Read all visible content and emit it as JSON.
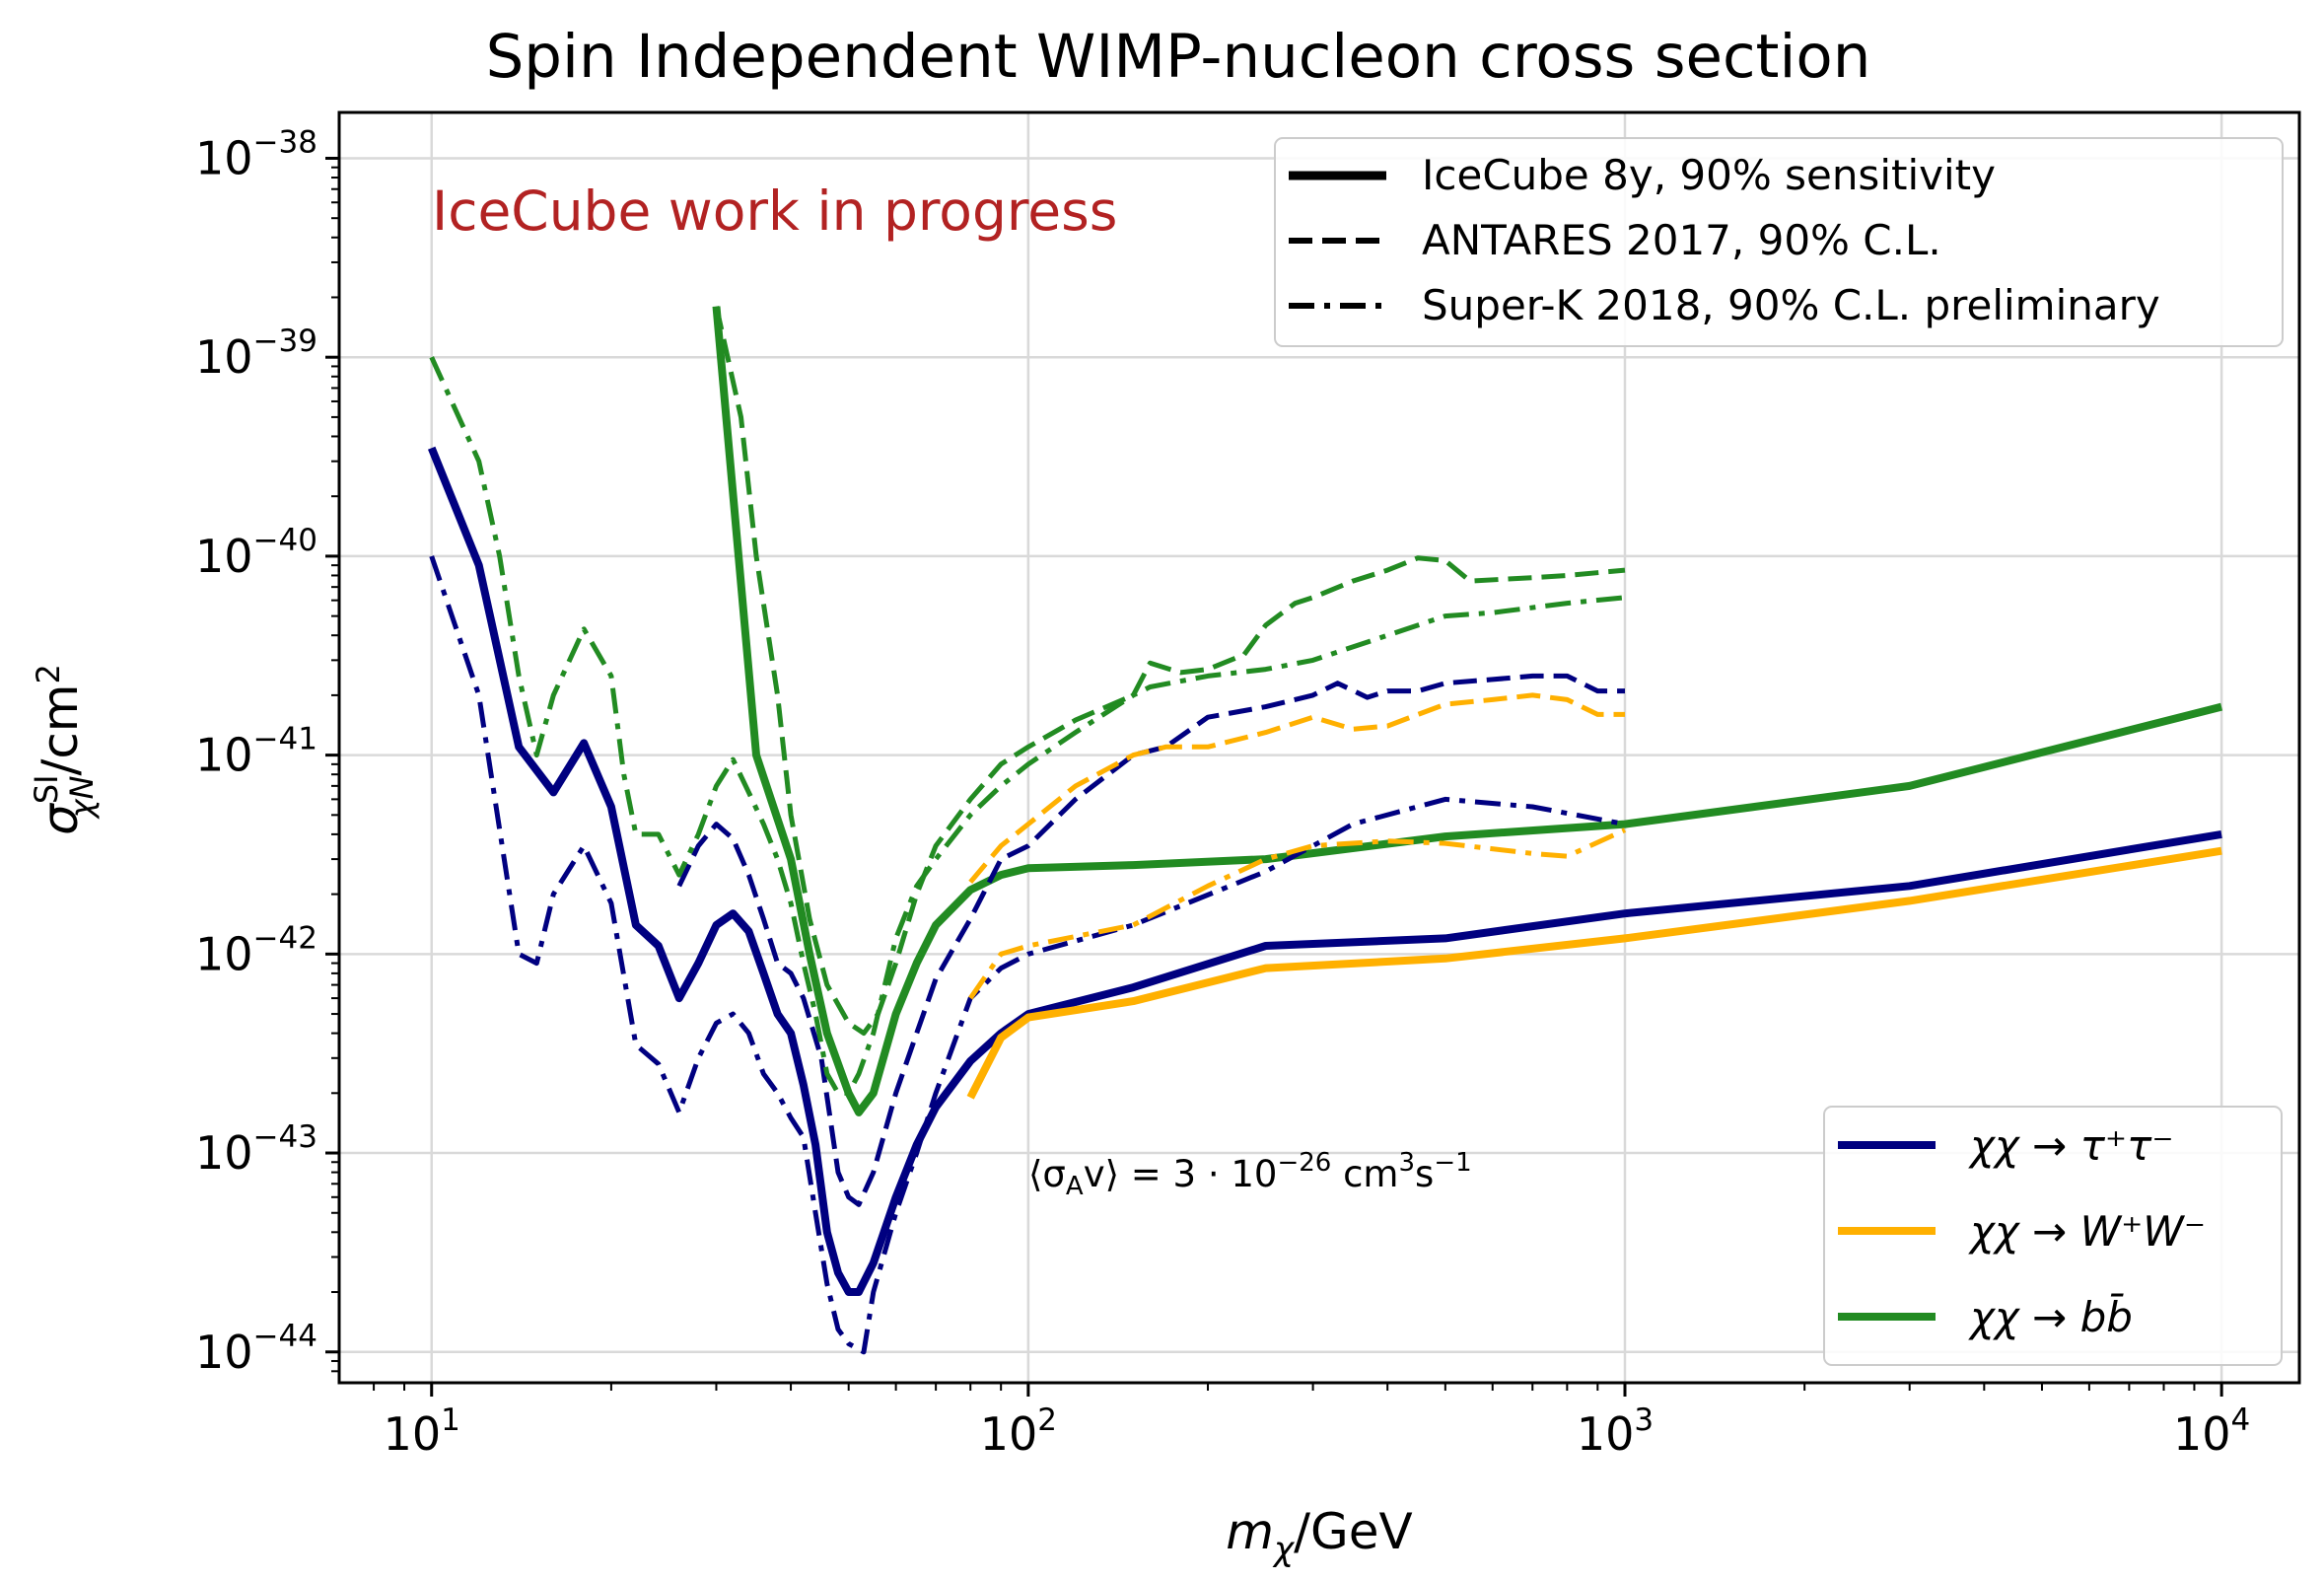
{
  "chart_data": {
    "type": "line",
    "title": "Spin Independent WIMP-nucleon cross section",
    "xlabel": {
      "base": "m",
      "sub": "χ",
      "unit": "/GeV"
    },
    "ylabel": {
      "base": "σ",
      "sup": "SI",
      "sub": "χN",
      "unit": "/cm",
      "unit_sup": "2"
    },
    "x_scale": "log",
    "y_scale": "log",
    "xlim": [
      7,
      13500
    ],
    "ylim": [
      7e-45,
      1.7e-38
    ],
    "grid": true,
    "x_ticks": [
      {
        "value": 10,
        "base": "10",
        "exp": "1"
      },
      {
        "value": 100,
        "base": "10",
        "exp": "2"
      },
      {
        "value": 1000,
        "base": "10",
        "exp": "3"
      },
      {
        "value": 10000,
        "base": "10",
        "exp": "4"
      }
    ],
    "y_ticks": [
      {
        "value": 1e-44,
        "base": "10",
        "exp": "−44"
      },
      {
        "value": 1e-43,
        "base": "10",
        "exp": "−43"
      },
      {
        "value": 1e-42,
        "base": "10",
        "exp": "−42"
      },
      {
        "value": 1e-41,
        "base": "10",
        "exp": "−41"
      },
      {
        "value": 1e-40,
        "base": "10",
        "exp": "−40"
      },
      {
        "value": 1e-39,
        "base": "10",
        "exp": "−39"
      },
      {
        "value": 1e-38,
        "base": "10",
        "exp": "−38"
      }
    ],
    "annotations": {
      "watermark": "IceCube work in progress",
      "cross_section": {
        "lhs": "⟨σ",
        "lhs_sub": "A",
        "lhs_rest": "v⟩ = 3 · 10",
        "exp": "−26",
        "unit": " cm",
        "unit_sup": "3",
        "unit2": "s",
        "unit2_sup": "−1"
      }
    },
    "style_legend": [
      {
        "label": "IceCube 8y, 90% sensitivity",
        "dash": "solid"
      },
      {
        "label": "ANTARES 2017, 90% C.L.",
        "dash": "dashed"
      },
      {
        "label": "Super-K 2018, 90% C.L. preliminary",
        "dash": "dashdot"
      }
    ],
    "color_legend": [
      {
        "label": "χχ → τ⁺τ⁻",
        "color": "#000080"
      },
      {
        "label": "χχ → W⁺W⁻",
        "color": "#ffb000"
      },
      {
        "label": "χχ → bb̄",
        "color": "#228b22"
      }
    ],
    "series": [
      {
        "channel": "tau",
        "experiment": "IceCube",
        "dash": "solid",
        "color": "#000080",
        "points": [
          [
            10,
            3.5e-40
          ],
          [
            12,
            9e-41
          ],
          [
            14,
            1.1e-41
          ],
          [
            16,
            6.5e-42
          ],
          [
            18,
            1.15e-41
          ],
          [
            20,
            5.5e-42
          ],
          [
            22,
            1.4e-42
          ],
          [
            24,
            1.1e-42
          ],
          [
            26,
            6e-43
          ],
          [
            28,
            9e-43
          ],
          [
            30,
            1.4e-42
          ],
          [
            32,
            1.6e-42
          ],
          [
            34,
            1.3e-42
          ],
          [
            36,
            8e-43
          ],
          [
            38,
            5e-43
          ],
          [
            40,
            4e-43
          ],
          [
            42,
            2.2e-43
          ],
          [
            44,
            1.1e-43
          ],
          [
            46,
            4e-44
          ],
          [
            48,
            2.5e-44
          ],
          [
            50,
            2e-44
          ],
          [
            52,
            2e-44
          ],
          [
            55,
            2.8e-44
          ],
          [
            60,
            6e-44
          ],
          [
            65,
            1.1e-43
          ],
          [
            70,
            1.7e-43
          ],
          [
            80,
            2.9e-43
          ],
          [
            90,
            4e-43
          ],
          [
            100,
            5e-43
          ],
          [
            150,
            6.8e-43
          ],
          [
            250,
            1.1e-42
          ],
          [
            500,
            1.2e-42
          ],
          [
            1000,
            1.6e-42
          ],
          [
            3000,
            2.2e-42
          ],
          [
            10000,
            4e-42
          ]
        ]
      },
      {
        "channel": "W",
        "experiment": "IceCube",
        "dash": "solid",
        "color": "#ffb000",
        "points": [
          [
            80,
            1.9e-43
          ],
          [
            90,
            3.8e-43
          ],
          [
            100,
            4.8e-43
          ],
          [
            150,
            5.8e-43
          ],
          [
            250,
            8.5e-43
          ],
          [
            500,
            9.5e-43
          ],
          [
            1000,
            1.2e-42
          ],
          [
            3000,
            1.85e-42
          ],
          [
            10000,
            3.3e-42
          ]
        ]
      },
      {
        "channel": "b",
        "experiment": "IceCube",
        "dash": "solid",
        "color": "#228b22",
        "points": [
          [
            30,
            1.8e-39
          ],
          [
            35,
            1e-41
          ],
          [
            40,
            3e-42
          ],
          [
            43,
            1e-42
          ],
          [
            46,
            4e-43
          ],
          [
            50,
            2e-43
          ],
          [
            52,
            1.6e-43
          ],
          [
            55,
            2e-43
          ],
          [
            60,
            5e-43
          ],
          [
            65,
            9e-43
          ],
          [
            70,
            1.4e-42
          ],
          [
            80,
            2.1e-42
          ],
          [
            90,
            2.5e-42
          ],
          [
            100,
            2.7e-42
          ],
          [
            150,
            2.8e-42
          ],
          [
            250,
            3e-42
          ],
          [
            500,
            3.9e-42
          ],
          [
            1000,
            4.5e-42
          ],
          [
            3000,
            7e-42
          ],
          [
            10000,
            1.75e-41
          ]
        ]
      },
      {
        "channel": "tau",
        "experiment": "ANTARES",
        "dash": "dashed",
        "color": "#000080",
        "points": [
          [
            26,
            2.2e-42
          ],
          [
            28,
            3.5e-42
          ],
          [
            30,
            4.5e-42
          ],
          [
            32,
            3.8e-42
          ],
          [
            34,
            2.5e-42
          ],
          [
            36,
            1.5e-42
          ],
          [
            38,
            9e-43
          ],
          [
            40,
            8e-43
          ],
          [
            42,
            6e-43
          ],
          [
            45,
            3e-43
          ],
          [
            48,
            8e-44
          ],
          [
            50,
            6e-44
          ],
          [
            52,
            5.5e-44
          ],
          [
            55,
            8e-44
          ],
          [
            60,
            2e-43
          ],
          [
            65,
            4e-43
          ],
          [
            70,
            7.5e-43
          ],
          [
            80,
            1.5e-42
          ],
          [
            90,
            3e-42
          ],
          [
            100,
            3.5e-42
          ],
          [
            120,
            6e-42
          ],
          [
            150,
            1e-41
          ],
          [
            170,
            1.1e-41
          ],
          [
            200,
            1.55e-41
          ],
          [
            250,
            1.75e-41
          ],
          [
            300,
            2e-41
          ],
          [
            330,
            2.3e-41
          ],
          [
            370,
            1.95e-41
          ],
          [
            400,
            2.1e-41
          ],
          [
            450,
            2.1e-41
          ],
          [
            500,
            2.3e-41
          ],
          [
            600,
            2.4e-41
          ],
          [
            700,
            2.5e-41
          ],
          [
            800,
            2.5e-41
          ],
          [
            900,
            2.1e-41
          ],
          [
            1000,
            2.1e-41
          ]
        ]
      },
      {
        "channel": "W",
        "experiment": "ANTARES",
        "dash": "dashed",
        "color": "#ffb000",
        "points": [
          [
            80,
            2.3e-42
          ],
          [
            90,
            3.5e-42
          ],
          [
            100,
            4.5e-42
          ],
          [
            120,
            7e-42
          ],
          [
            150,
            1e-41
          ],
          [
            170,
            1.1e-41
          ],
          [
            200,
            1.1e-41
          ],
          [
            250,
            1.3e-41
          ],
          [
            300,
            1.55e-41
          ],
          [
            350,
            1.35e-41
          ],
          [
            400,
            1.4e-41
          ],
          [
            450,
            1.6e-41
          ],
          [
            500,
            1.8e-41
          ],
          [
            600,
            1.9e-41
          ],
          [
            700,
            2e-41
          ],
          [
            800,
            1.9e-41
          ],
          [
            900,
            1.6e-41
          ],
          [
            1000,
            1.6e-41
          ]
        ]
      },
      {
        "channel": "b",
        "experiment": "ANTARES",
        "dash": "dashed",
        "color": "#228b22",
        "points": [
          [
            30,
            1.8e-39
          ],
          [
            33,
            5e-40
          ],
          [
            35,
            1e-40
          ],
          [
            38,
            2e-41
          ],
          [
            40,
            5e-42
          ],
          [
            43,
            1.5e-42
          ],
          [
            46,
            7e-43
          ],
          [
            50,
            4.5e-43
          ],
          [
            53,
            4e-43
          ],
          [
            56,
            5e-43
          ],
          [
            60,
            9e-43
          ],
          [
            65,
            2e-42
          ],
          [
            70,
            3.5e-42
          ],
          [
            80,
            6e-42
          ],
          [
            90,
            9e-42
          ],
          [
            100,
            1.1e-41
          ],
          [
            120,
            1.5e-41
          ],
          [
            150,
            2e-41
          ],
          [
            160,
            2.9e-41
          ],
          [
            180,
            2.6e-41
          ],
          [
            200,
            2.7e-41
          ],
          [
            230,
            3.2e-41
          ],
          [
            250,
            4.5e-41
          ],
          [
            280,
            5.8e-41
          ],
          [
            300,
            6.2e-41
          ],
          [
            350,
            7.5e-41
          ],
          [
            400,
            8.5e-41
          ],
          [
            450,
            9.8e-41
          ],
          [
            500,
            9.5e-41
          ],
          [
            550,
            7.5e-41
          ],
          [
            700,
            7.8e-41
          ],
          [
            800,
            8e-41
          ],
          [
            1000,
            8.5e-41
          ]
        ]
      },
      {
        "channel": "tau",
        "experiment": "Super-K",
        "dash": "dashdot",
        "color": "#000080",
        "points": [
          [
            10,
            1e-40
          ],
          [
            12,
            2e-41
          ],
          [
            14,
            1e-42
          ],
          [
            15,
            9e-43
          ],
          [
            16,
            2e-42
          ],
          [
            18,
            3.5e-42
          ],
          [
            20,
            1.8e-42
          ],
          [
            22,
            3.5e-43
          ],
          [
            24,
            2.8e-43
          ],
          [
            26,
            1.6e-43
          ],
          [
            28,
            3e-43
          ],
          [
            30,
            4.5e-43
          ],
          [
            32,
            5e-43
          ],
          [
            34,
            4e-43
          ],
          [
            36,
            2.5e-43
          ],
          [
            38,
            2e-43
          ],
          [
            40,
            1.5e-43
          ],
          [
            42,
            1.2e-43
          ],
          [
            44,
            5e-44
          ],
          [
            46,
            2.2e-44
          ],
          [
            48,
            1.3e-44
          ],
          [
            50,
            1.1e-44
          ],
          [
            53,
            1e-44
          ],
          [
            55,
            2e-44
          ],
          [
            60,
            5e-44
          ],
          [
            65,
            1e-43
          ],
          [
            70,
            2e-43
          ],
          [
            80,
            6e-43
          ],
          [
            90,
            8.5e-43
          ],
          [
            100,
            1e-42
          ],
          [
            150,
            1.4e-42
          ],
          [
            250,
            2.6e-42
          ],
          [
            350,
            4.5e-42
          ],
          [
            500,
            6e-42
          ],
          [
            700,
            5.5e-42
          ],
          [
            1000,
            4.5e-42
          ]
        ]
      },
      {
        "channel": "W",
        "experiment": "Super-K",
        "dash": "dashdot",
        "color": "#ffb000",
        "points": [
          [
            80,
            6e-43
          ],
          [
            90,
            1e-42
          ],
          [
            100,
            1.1e-42
          ],
          [
            150,
            1.4e-42
          ],
          [
            200,
            2.2e-42
          ],
          [
            250,
            3e-42
          ],
          [
            300,
            3.5e-42
          ],
          [
            400,
            3.7e-42
          ],
          [
            500,
            3.6e-42
          ],
          [
            700,
            3.2e-42
          ],
          [
            800,
            3.1e-42
          ],
          [
            1000,
            4.2e-42
          ]
        ]
      },
      {
        "channel": "b",
        "experiment": "Super-K",
        "dash": "dashdot",
        "color": "#228b22",
        "points": [
          [
            10,
            1e-39
          ],
          [
            12,
            3e-40
          ],
          [
            13,
            1e-40
          ],
          [
            14,
            2.5e-41
          ],
          [
            15,
            1e-41
          ],
          [
            16,
            2e-41
          ],
          [
            18,
            4.3e-41
          ],
          [
            20,
            2.5e-41
          ],
          [
            21,
            8e-42
          ],
          [
            22,
            4e-42
          ],
          [
            24,
            4e-42
          ],
          [
            26,
            2.5e-42
          ],
          [
            28,
            4e-42
          ],
          [
            30,
            7e-42
          ],
          [
            32,
            9.5e-42
          ],
          [
            34,
            6.5e-42
          ],
          [
            36,
            4.5e-42
          ],
          [
            38,
            3e-42
          ],
          [
            40,
            1.8e-42
          ],
          [
            42,
            9e-43
          ],
          [
            44,
            5e-43
          ],
          [
            46,
            2.5e-43
          ],
          [
            48,
            2e-43
          ],
          [
            50,
            2e-43
          ],
          [
            52,
            2.5e-43
          ],
          [
            55,
            4e-43
          ],
          [
            60,
            1.2e-42
          ],
          [
            65,
            2.2e-42
          ],
          [
            70,
            3e-42
          ],
          [
            80,
            5e-42
          ],
          [
            90,
            7e-42
          ],
          [
            100,
            9e-42
          ],
          [
            120,
            1.3e-41
          ],
          [
            150,
            2e-41
          ],
          [
            160,
            2.2e-41
          ],
          [
            200,
            2.5e-41
          ],
          [
            250,
            2.7e-41
          ],
          [
            300,
            3e-41
          ],
          [
            400,
            4e-41
          ],
          [
            500,
            5e-41
          ],
          [
            600,
            5.2e-41
          ],
          [
            800,
            5.8e-41
          ],
          [
            1000,
            6.2e-41
          ]
        ]
      }
    ]
  }
}
